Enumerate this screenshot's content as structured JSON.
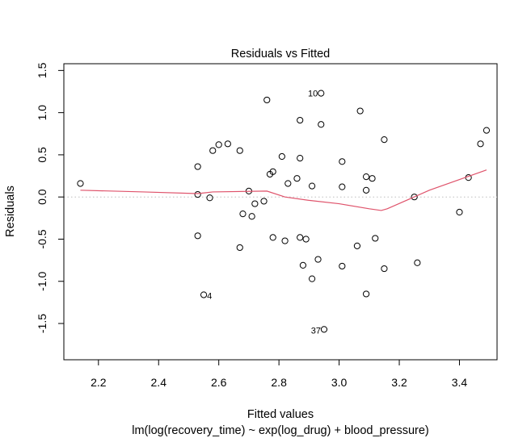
{
  "chart_data": {
    "type": "scatter",
    "title": "Residuals vs Fitted",
    "xlabel": "Fitted values",
    "ylabel": "Residuals",
    "subtitle": "lm(log(recovery_time) ~ exp(log_drug) + blood_pressure)",
    "xlim": [
      2.085,
      3.525
    ],
    "ylim": [
      -1.93,
      1.58
    ],
    "xticks": [
      "2.2",
      "2.4",
      "2.6",
      "2.8",
      "3.0",
      "3.2",
      "3.4"
    ],
    "yticks": [
      "-1.5",
      "-1.0",
      "-0.5",
      "0.0",
      "0.5",
      "1.0",
      "1.5"
    ],
    "points": [
      {
        "x": 2.14,
        "y": 0.16
      },
      {
        "x": 2.53,
        "y": 0.36
      },
      {
        "x": 2.53,
        "y": 0.03
      },
      {
        "x": 2.53,
        "y": -0.46
      },
      {
        "x": 2.55,
        "y": -1.16
      },
      {
        "x": 2.57,
        "y": -0.01
      },
      {
        "x": 2.58,
        "y": 0.55
      },
      {
        "x": 2.6,
        "y": 0.62
      },
      {
        "x": 2.63,
        "y": 0.63
      },
      {
        "x": 2.67,
        "y": 0.55
      },
      {
        "x": 2.67,
        "y": -0.6
      },
      {
        "x": 2.68,
        "y": -0.2
      },
      {
        "x": 2.7,
        "y": 0.07
      },
      {
        "x": 2.71,
        "y": -0.23
      },
      {
        "x": 2.72,
        "y": -0.08
      },
      {
        "x": 2.75,
        "y": -0.05
      },
      {
        "x": 2.76,
        "y": 1.15
      },
      {
        "x": 2.77,
        "y": 0.27
      },
      {
        "x": 2.78,
        "y": 0.3
      },
      {
        "x": 2.78,
        "y": -0.48
      },
      {
        "x": 2.81,
        "y": 0.48
      },
      {
        "x": 2.82,
        "y": -0.52
      },
      {
        "x": 2.83,
        "y": 0.16
      },
      {
        "x": 2.86,
        "y": 0.22
      },
      {
        "x": 2.87,
        "y": 0.91
      },
      {
        "x": 2.87,
        "y": 0.46
      },
      {
        "x": 2.87,
        "y": -0.48
      },
      {
        "x": 2.88,
        "y": -0.81
      },
      {
        "x": 2.89,
        "y": -0.5
      },
      {
        "x": 2.91,
        "y": 0.13
      },
      {
        "x": 2.91,
        "y": -0.97
      },
      {
        "x": 2.93,
        "y": -0.74
      },
      {
        "x": 2.94,
        "y": 1.23
      },
      {
        "x": 2.94,
        "y": 0.86
      },
      {
        "x": 2.95,
        "y": -1.57
      },
      {
        "x": 3.01,
        "y": 0.42
      },
      {
        "x": 3.01,
        "y": 0.12
      },
      {
        "x": 3.01,
        "y": -0.82
      },
      {
        "x": 3.06,
        "y": -0.58
      },
      {
        "x": 3.07,
        "y": 1.02
      },
      {
        "x": 3.09,
        "y": 0.24
      },
      {
        "x": 3.09,
        "y": 0.08
      },
      {
        "x": 3.09,
        "y": -1.15
      },
      {
        "x": 3.11,
        "y": 0.22
      },
      {
        "x": 3.12,
        "y": -0.49
      },
      {
        "x": 3.15,
        "y": 0.68
      },
      {
        "x": 3.15,
        "y": -0.85
      },
      {
        "x": 3.25,
        "y": 0.0
      },
      {
        "x": 3.26,
        "y": -0.78
      },
      {
        "x": 3.4,
        "y": -0.18
      },
      {
        "x": 3.43,
        "y": 0.23
      },
      {
        "x": 3.47,
        "y": 0.63
      },
      {
        "x": 3.49,
        "y": 0.79
      }
    ],
    "smooth_line": {
      "color": "#DF536B",
      "x": [
        2.14,
        2.35,
        2.53,
        2.58,
        2.76,
        2.82,
        2.9,
        3.0,
        3.1,
        3.14,
        3.16,
        3.3,
        3.49
      ],
      "y": [
        0.08,
        0.06,
        0.04,
        0.06,
        0.07,
        0.0,
        -0.04,
        -0.08,
        -0.14,
        -0.16,
        -0.14,
        0.08,
        0.32
      ]
    },
    "reference_line": {
      "y": 0.0,
      "color": "#BEBEBE",
      "style": "dotted"
    },
    "annotations": [
      {
        "text": "10",
        "x": 2.94,
        "y": 1.23
      },
      {
        "text": "4",
        "x": 2.55,
        "y": -1.16
      },
      {
        "text": "37",
        "x": 2.95,
        "y": -1.57
      }
    ]
  }
}
